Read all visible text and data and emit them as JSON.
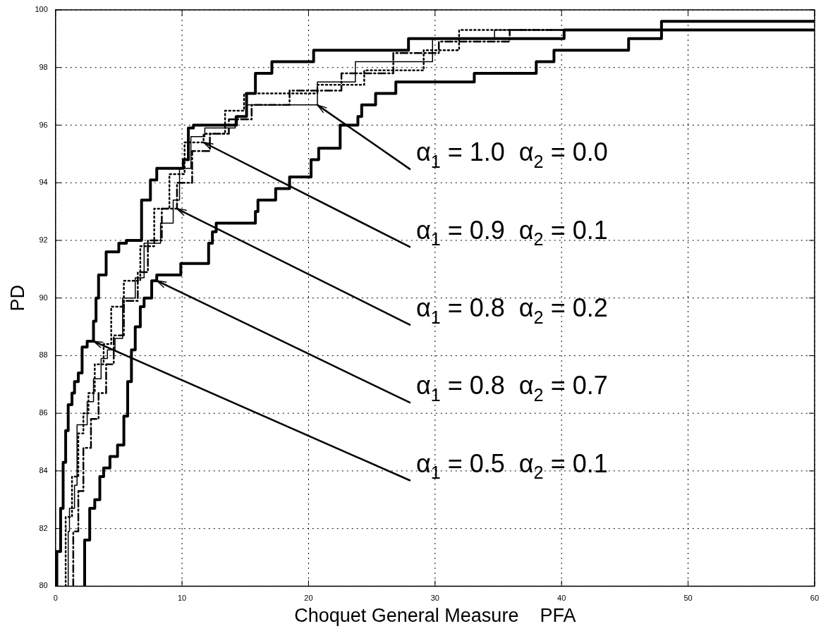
{
  "chart_data": {
    "type": "step",
    "xlabel": "Choquet General Measure    PFA",
    "ylabel": "PD",
    "xlim": [
      0,
      60
    ],
    "xticks": [
      0,
      10,
      20,
      30,
      40,
      50,
      60
    ],
    "ylim": [
      80,
      100
    ],
    "yticks": [
      80,
      82,
      84,
      86,
      88,
      90,
      92,
      94,
      96,
      98,
      100
    ],
    "grid": true,
    "legend": false,
    "series": [
      {
        "color": "#000000",
        "line_style": "solid",
        "x": [
          0.1,
          0.4,
          0.6,
          0.8,
          1.0,
          1.3,
          1.5,
          1.8,
          2.1,
          2.5,
          3.0,
          3.2,
          3.4,
          4.0,
          5.0,
          5.6,
          6.8,
          7.5,
          8.0,
          10.1,
          10.5,
          10.9,
          14.3,
          15.1,
          15.8,
          17.1,
          20.4,
          27.9,
          40.2,
          60
        ],
        "values": [
          80,
          81.2,
          82.7,
          84.3,
          85.4,
          86.3,
          86.7,
          87.1,
          87.4,
          88.3,
          88.5,
          89.2,
          90.0,
          90.8,
          91.6,
          91.9,
          92.0,
          93.4,
          94.1,
          94.5,
          94.8,
          95.9,
          96.0,
          96.3,
          97.1,
          97.8,
          98.2,
          98.6,
          99.0,
          99.3
        ]
      },
      {
        "color": "#000000",
        "line_style": "solid",
        "x": [
          1.0,
          1.1,
          1.5,
          1.7,
          2.5,
          3.0,
          3.6,
          4.1,
          4.7,
          5.3,
          6.3,
          7.0,
          8.3,
          9.3,
          9.8,
          10.7,
          11.8,
          14.2,
          15.1,
          20.7,
          23.7,
          29.8,
          34.7,
          60
        ],
        "values": [
          80,
          81.9,
          82.7,
          83.5,
          85.6,
          86.4,
          87.2,
          87.9,
          88.2,
          88.6,
          90.0,
          90.7,
          91.9,
          92.6,
          93.4,
          94.5,
          95.6,
          95.9,
          96.3,
          96.7,
          97.5,
          98.2,
          99.0,
          99.3
        ]
      },
      {
        "color": "#000000",
        "line_style": "dotted",
        "x": [
          0.8,
          1.3,
          1.8,
          2.2,
          2.6,
          3.1,
          3.8,
          4.4,
          5.4,
          6.7,
          7.8,
          9.0,
          10.2,
          11.7,
          13.4,
          14.9,
          20.7,
          24.4,
          29.1,
          31.9,
          60
        ],
        "values": [
          80,
          82.4,
          83.8,
          85.3,
          86.0,
          86.7,
          87.7,
          88.4,
          89.7,
          90.6,
          91.8,
          93.1,
          94.3,
          95.4,
          95.7,
          96.5,
          97.1,
          97.4,
          97.9,
          98.6,
          99.3
        ]
      },
      {
        "color": "#000000",
        "line_style": "dashed",
        "x": [
          1.4,
          1.8,
          2.2,
          2.8,
          3.4,
          4.0,
          4.6,
          5.4,
          6.5,
          7.3,
          8.4,
          9.6,
          10.8,
          12.2,
          13.7,
          15.5,
          18.5,
          22.6,
          26.7,
          30.3,
          35.9,
          60
        ],
        "values": [
          80,
          81.9,
          83.3,
          84.8,
          85.8,
          86.7,
          87.7,
          88.7,
          89.9,
          90.9,
          92.0,
          93.1,
          94.0,
          95.1,
          95.7,
          96.2,
          96.7,
          97.2,
          97.8,
          98.5,
          98.9,
          99.3
        ]
      },
      {
        "color": "#000000",
        "line_style": "solid",
        "x": [
          2.3,
          2.7,
          3.1,
          3.5,
          3.8,
          4.3,
          4.9,
          5.4,
          5.7,
          6.0,
          6.3,
          6.7,
          7.0,
          7.6,
          8.0,
          9.9,
          12.1,
          12.4,
          12.7,
          15.8,
          16.0,
          17.4,
          18.5,
          20.2,
          20.8,
          22.5,
          23.9,
          24.2,
          25.3,
          26.9,
          33.1,
          38.0,
          39.4,
          45.3,
          47.9,
          60
        ],
        "values": [
          80,
          81.6,
          82.7,
          83.0,
          83.8,
          84.1,
          84.5,
          84.9,
          85.9,
          87.1,
          88.2,
          89.0,
          89.7,
          90.0,
          90.6,
          90.8,
          91.2,
          91.9,
          92.3,
          92.6,
          93.0,
          93.4,
          93.8,
          94.2,
          94.8,
          95.2,
          96.0,
          96.3,
          96.7,
          97.1,
          97.5,
          97.8,
          98.2,
          98.6,
          99.0,
          99.6
        ]
      }
    ],
    "annotations": [
      {
        "text": "α$_{1}$ = 1.0  α$_{2}$ = 0.0",
        "x": 20.7,
        "y": 96.7
      },
      {
        "text": "α$_{1}$ = 0.9  α$_{2}$ = 0.1",
        "x": 11.7,
        "y": 95.4
      },
      {
        "text": "α$_{1}$ = 0.8  α$_{2}$ = 0.2",
        "x": 9.6,
        "y": 93.1
      },
      {
        "text": "α$_{1}$ = 0.8  α$_{2}$ = 0.7",
        "x": 8.0,
        "y": 90.6
      },
      {
        "text": "α$_{1}$ = 0.5  α$_{2}$ = 0.1",
        "x": 3.0,
        "y": 88.5
      }
    ]
  }
}
